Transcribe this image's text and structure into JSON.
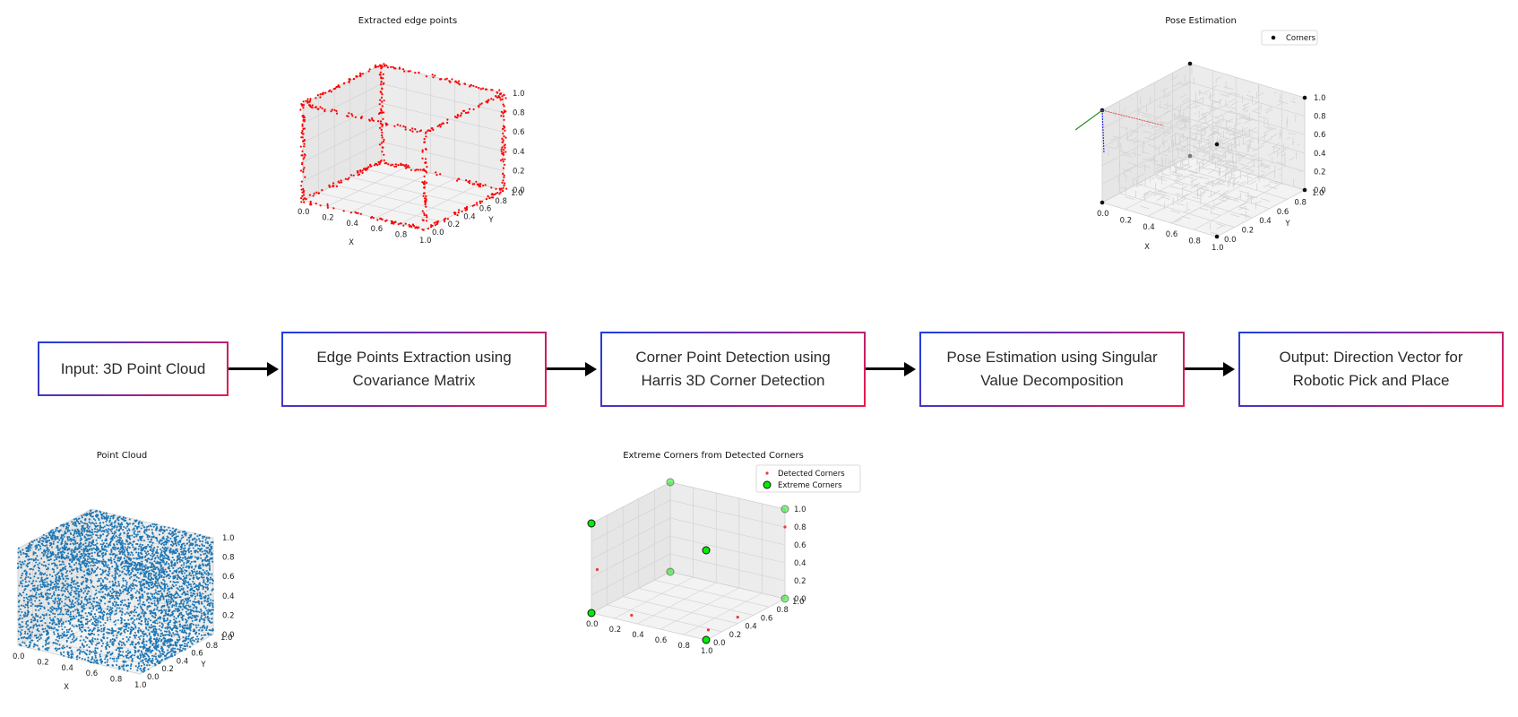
{
  "flow": {
    "steps": [
      "Input: 3D Point Cloud",
      "Edge Points Extraction using\nCovariance Matrix",
      "Corner Point Detection using\nHarris 3D Corner Detection",
      "Pose Estimation using Singular\nValue Decomposition",
      "Output: Direction Vector for\nRobotic Pick and Place"
    ]
  },
  "colors": {
    "gradient_start": "#1f3fe0",
    "gradient_end": "#ee1a4a",
    "edge_points": "#ff0000",
    "point_cloud": "#1f77b4",
    "pose_cloud": "#d3d3d3",
    "extreme_corners": "#00ee00",
    "detected_corners": "#e8383d"
  },
  "chart_data": [
    {
      "type": "scatter",
      "title": "Extracted edge points",
      "xlabel": "X",
      "ylabel": "Y",
      "zlabel": "",
      "xticks": [
        "0.0",
        "0.2",
        "0.4",
        "0.6",
        "0.8",
        "1.0"
      ],
      "yticks": [
        "0.0",
        "0.2",
        "0.4",
        "0.6",
        "0.8",
        "1.0"
      ],
      "zticks": [
        "0.0",
        "0.2",
        "0.4",
        "0.6",
        "0.8",
        "1.0"
      ],
      "xlim": [
        0,
        1
      ],
      "ylim": [
        0,
        1
      ],
      "zlim": [
        0,
        1
      ],
      "grid": true,
      "series": [
        {
          "color": "#ff0000",
          "description": "points along the 12 edges of a unit cube"
        }
      ]
    },
    {
      "type": "scatter",
      "title": "Pose Estimation",
      "xlabel": "X",
      "ylabel": "Y",
      "zlabel": "",
      "xticks": [
        "0.0",
        "0.2",
        "0.4",
        "0.6",
        "0.8",
        "1.0"
      ],
      "yticks": [
        "0.0",
        "0.2",
        "0.4",
        "0.6",
        "0.8",
        "1.0"
      ],
      "zticks": [
        "0.0",
        "0.2",
        "0.4",
        "0.6",
        "0.8",
        "1.0"
      ],
      "xlim": [
        0,
        1
      ],
      "ylim": [
        0,
        1
      ],
      "zlim": [
        0,
        1
      ],
      "grid": true,
      "legend": [
        "Corners"
      ],
      "legend_position": "top-right",
      "corners": [
        [
          0,
          0,
          0
        ],
        [
          1,
          0,
          0
        ],
        [
          1,
          1,
          0
        ],
        [
          0,
          1,
          0
        ],
        [
          0,
          0,
          1
        ],
        [
          1,
          0,
          1
        ],
        [
          1,
          1,
          1
        ],
        [
          0,
          1,
          1
        ]
      ],
      "axes_vectors": [
        "red",
        "green",
        "blue"
      ]
    },
    {
      "type": "scatter",
      "title": "Point Cloud",
      "xlabel": "X",
      "ylabel": "Y",
      "zlabel": "",
      "xticks": [
        "0.0",
        "0.2",
        "0.4",
        "0.6",
        "0.8",
        "1.0"
      ],
      "yticks": [
        "0.0",
        "0.2",
        "0.4",
        "0.6",
        "0.8",
        "1.0"
      ],
      "zticks": [
        "0.0",
        "0.2",
        "0.4",
        "0.6",
        "0.8",
        "1.0"
      ],
      "xlim": [
        0,
        1
      ],
      "ylim": [
        0,
        1
      ],
      "zlim": [
        0,
        1
      ],
      "grid": true
    },
    {
      "type": "scatter",
      "title": "Extreme Corners from Detected Corners",
      "xlabel": "",
      "ylabel": "",
      "zlabel": "",
      "xticks": [
        "0.0",
        "0.2",
        "0.4",
        "0.6",
        "0.8",
        "1.0"
      ],
      "yticks": [
        "0.0",
        "0.2",
        "0.4",
        "0.6",
        "0.8",
        "1.0"
      ],
      "zticks": [
        "0.0",
        "0.2",
        "0.4",
        "0.6",
        "0.8",
        "1.0"
      ],
      "xlim": [
        0,
        1
      ],
      "ylim": [
        0,
        1
      ],
      "zlim": [
        0,
        1
      ],
      "grid": true,
      "legend": [
        "Detected Corners",
        "Extreme Corners"
      ],
      "legend_position": "top-right",
      "series": [
        {
          "name": "Detected Corners",
          "points": [
            [
              0.05,
              0,
              0.5
            ],
            [
              0.35,
              0,
              0.08
            ],
            [
              0.95,
              0.1,
              0.05
            ],
            [
              1,
              0.4,
              0.07
            ],
            [
              1,
              1,
              0.8
            ]
          ]
        },
        {
          "name": "Extreme Corners",
          "points": [
            [
              0,
              0,
              0
            ],
            [
              1,
              0,
              0
            ],
            [
              1,
              1,
              0
            ],
            [
              0,
              1,
              0
            ],
            [
              0,
              0,
              1
            ],
            [
              1,
              0,
              1
            ],
            [
              1,
              1,
              1
            ],
            [
              0,
              1,
              1
            ]
          ]
        }
      ]
    }
  ]
}
